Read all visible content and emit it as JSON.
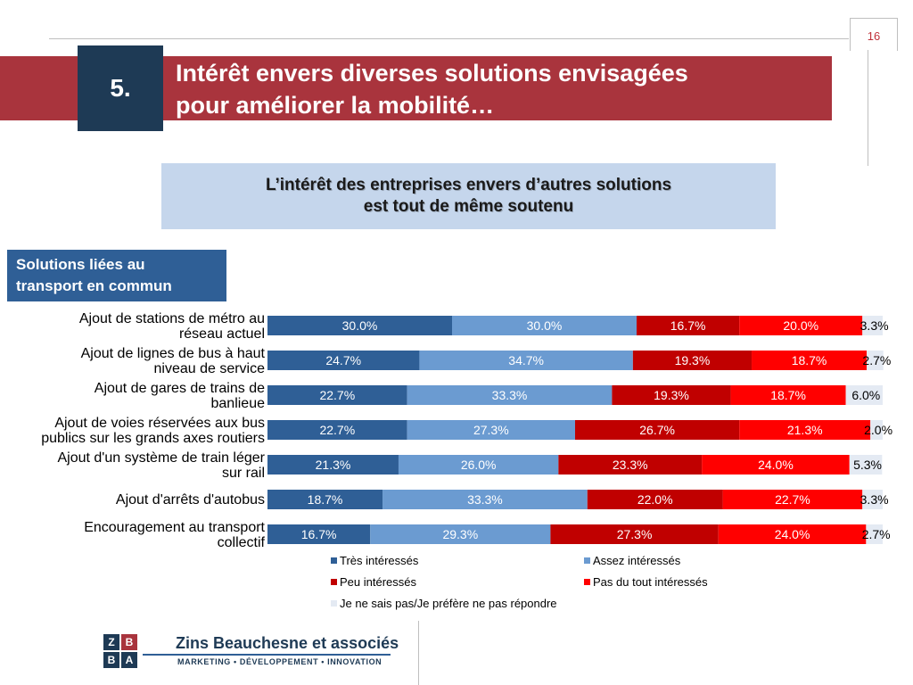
{
  "header": {
    "page_number": "16",
    "section_number": "5.",
    "title_line1": "Intérêt envers diverses solutions envisagées",
    "title_line2": "pour améliorer la mobilité…"
  },
  "subtitle": {
    "line1": "L’intérêt des entreprises envers d’autres solutions",
    "line2": "est tout de même soutenu"
  },
  "category_box": {
    "line1": "Solutions liées au",
    "line2": "transport en commun"
  },
  "chart_data": {
    "type": "bar",
    "orientation": "horizontal",
    "stacked": true,
    "xlim": [
      0,
      100
    ],
    "categories": [
      [
        "Ajout de stations de métro au",
        "réseau actuel"
      ],
      [
        "Ajout de lignes de bus à haut",
        "niveau de service"
      ],
      [
        "Ajout de gares de trains de",
        "banlieue"
      ],
      [
        "Ajout de voies réservées aux bus",
        "publics sur les grands axes routiers"
      ],
      [
        "Ajout d'un système de train léger",
        "sur rail"
      ],
      [
        "Ajout d'arrêts d'autobus"
      ],
      [
        "Encouragement au transport",
        "collectif"
      ]
    ],
    "series": [
      {
        "name": "Très intéressés",
        "color": "#2f5f96",
        "values": [
          30.0,
          24.7,
          22.7,
          22.7,
          21.3,
          18.7,
          16.7
        ]
      },
      {
        "name": "Assez intéressés",
        "color": "#6b9bd1",
        "values": [
          30.0,
          34.7,
          33.3,
          27.3,
          26.0,
          33.3,
          29.3
        ]
      },
      {
        "name": "Peu intéressés",
        "color": "#c00000",
        "values": [
          16.7,
          19.3,
          19.3,
          26.7,
          23.3,
          22.0,
          27.3
        ]
      },
      {
        "name": "Pas du tout intéressés",
        "color": "#ff0000",
        "values": [
          20.0,
          18.7,
          18.7,
          21.3,
          24.0,
          22.7,
          24.0
        ]
      },
      {
        "name": "Je ne sais pas/Je préfère ne pas répondre",
        "color": "#e4eaf3",
        "values": [
          3.3,
          2.7,
          6.0,
          2.0,
          5.3,
          3.3,
          2.7
        ]
      }
    ],
    "value_format": "%",
    "decimals": 1,
    "legend_position": "bottom",
    "grid": false
  },
  "footer": {
    "logo_letters": [
      "Z",
      "B",
      "B",
      "A"
    ],
    "logo_colors": [
      "#1e3a55",
      "#a9343d",
      "#1e3a55",
      "#1e3a55"
    ],
    "company_name": "Zins Beauchesne et associés",
    "tagline": "MARKETING • DÉVELOPPEMENT • INNOVATION"
  }
}
